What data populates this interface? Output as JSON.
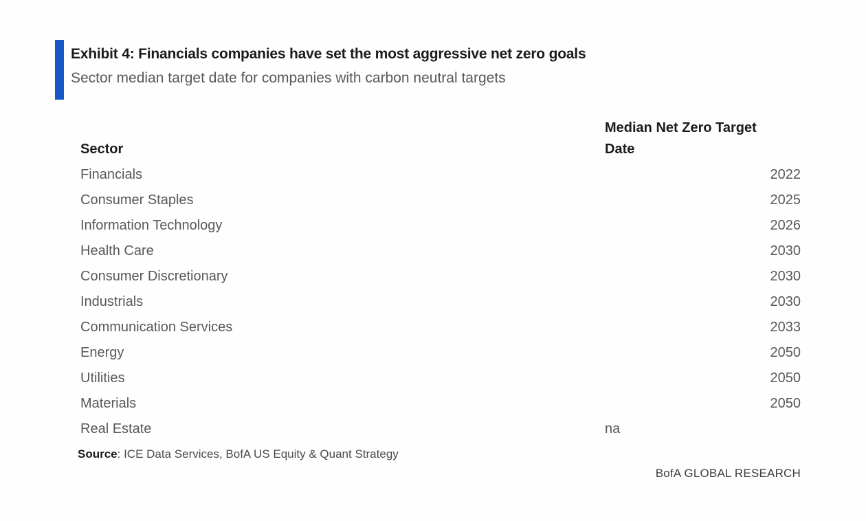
{
  "exhibit": {
    "title": "Exhibit 4: Financials companies have set the most aggressive net zero goals",
    "subtitle": "Sector median target date for companies with carbon neutral targets",
    "accent_color": "#1459c7"
  },
  "table": {
    "sector_header": "Sector",
    "value_header": "Median Net Zero Target Date",
    "rows": [
      {
        "sector": "Financials",
        "value": "2022"
      },
      {
        "sector": "Consumer Staples",
        "value": "2025"
      },
      {
        "sector": "Information Technology",
        "value": "2026"
      },
      {
        "sector": "Health Care",
        "value": "2030"
      },
      {
        "sector": "Consumer Discretionary",
        "value": "2030"
      },
      {
        "sector": "Industrials",
        "value": "2030"
      },
      {
        "sector": "Communication Services",
        "value": "2033"
      },
      {
        "sector": "Energy",
        "value": "2050"
      },
      {
        "sector": "Utilities",
        "value": "2050"
      },
      {
        "sector": "Materials",
        "value": "2050"
      },
      {
        "sector": "Real Estate",
        "value": "na"
      }
    ]
  },
  "footer": {
    "source_label": "Source",
    "source_rest": ": ICE Data Services, BofA US Equity & Quant Strategy",
    "branding": "BofA GLOBAL RESEARCH"
  },
  "chart_data": {
    "type": "table",
    "title": "Exhibit 4: Financials companies have set the most aggressive net zero goals",
    "subtitle": "Sector median target date for companies with carbon neutral targets",
    "columns": [
      "Sector",
      "Median Net Zero Target Date"
    ],
    "categories": [
      "Financials",
      "Consumer Staples",
      "Information Technology",
      "Health Care",
      "Consumer Discretionary",
      "Industrials",
      "Communication Services",
      "Energy",
      "Utilities",
      "Materials",
      "Real Estate"
    ],
    "values": [
      2022,
      2025,
      2026,
      2030,
      2030,
      2030,
      2033,
      2050,
      2050,
      2050,
      "na"
    ],
    "source": "ICE Data Services, BofA US Equity & Quant Strategy",
    "branding": "BofA GLOBAL RESEARCH"
  }
}
